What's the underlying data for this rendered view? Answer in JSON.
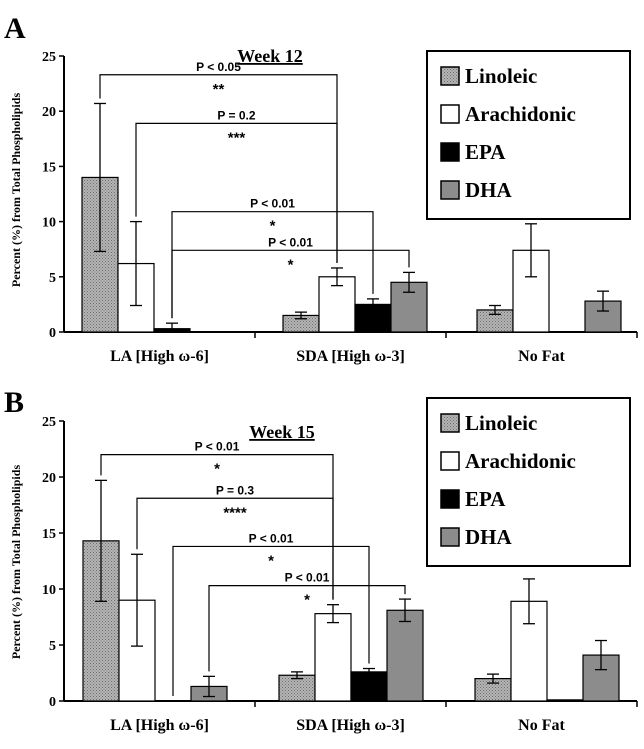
{
  "colors": {
    "linoleic": "#a8a8a8",
    "arachidonic": "#ffffff",
    "epa": "#000000",
    "dha": "#8c8c8c"
  },
  "chart_data": [
    {
      "type": "bar",
      "panel": "A",
      "title": "Week 12",
      "ylabel": "Percent (%) from Total Phospholipids",
      "ylim": [
        0,
        25
      ],
      "yticks": [
        0,
        5,
        10,
        15,
        20,
        25
      ],
      "categories": [
        "LA [High ω-6]",
        "SDA [High ω-3]",
        "No Fat"
      ],
      "legend_position": "top-right",
      "series": [
        {
          "name": "Linoleic",
          "key": "linoleic",
          "values": [
            14.0,
            1.5,
            2.0
          ],
          "errors": [
            6.7,
            0.3,
            0.4
          ]
        },
        {
          "name": "Arachidonic",
          "key": "arachidonic",
          "values": [
            6.2,
            5.0,
            7.4
          ],
          "errors": [
            3.8,
            0.8,
            2.4
          ]
        },
        {
          "name": "EPA",
          "key": "epa",
          "values": [
            0.3,
            2.5,
            null
          ],
          "errors": [
            0.5,
            0.5,
            null
          ]
        },
        {
          "name": "DHA",
          "key": "dha",
          "values": [
            null,
            4.5,
            2.8
          ],
          "errors": [
            null,
            0.9,
            0.9
          ]
        }
      ],
      "comparisons": [
        {
          "from": [
            0,
            0
          ],
          "to": [
            1,
            1
          ],
          "label": "P < 0.05",
          "stars": "**",
          "y": 23.3
        },
        {
          "from": [
            0,
            1
          ],
          "to": [
            1,
            1
          ],
          "label": "P = 0.2",
          "stars": "***",
          "y": 18.9
        },
        {
          "from": [
            0,
            2
          ],
          "to": [
            1,
            2
          ],
          "label": "P < 0.01",
          "stars": "*",
          "y": 10.9
        },
        {
          "from": [
            0,
            2
          ],
          "to": [
            1,
            3
          ],
          "label": "P < 0.01",
          "stars": "*",
          "y": 7.4
        }
      ]
    },
    {
      "type": "bar",
      "panel": "B",
      "title": "Week 15",
      "ylabel": "Percent (%) from Total Phospholipids",
      "ylim": [
        0,
        25
      ],
      "yticks": [
        0,
        5,
        10,
        15,
        20,
        25
      ],
      "categories": [
        "LA [High ω-6]",
        "SDA [High ω-3]",
        "No Fat"
      ],
      "legend_position": "top-right",
      "series": [
        {
          "name": "Linoleic",
          "key": "linoleic",
          "values": [
            14.3,
            2.3,
            2.0
          ],
          "errors": [
            5.4,
            0.3,
            0.4
          ]
        },
        {
          "name": "Arachidonic",
          "key": "arachidonic",
          "values": [
            9.0,
            7.8,
            8.9
          ],
          "errors": [
            4.1,
            0.8,
            2.0
          ]
        },
        {
          "name": "EPA",
          "key": "epa",
          "values": [
            null,
            2.6,
            0.1
          ],
          "errors": [
            null,
            0.3,
            null
          ]
        },
        {
          "name": "DHA",
          "key": "dha",
          "values": [
            1.3,
            8.1,
            4.1
          ],
          "errors": [
            0.9,
            1.0,
            1.3
          ]
        }
      ],
      "comparisons": [
        {
          "from": [
            0,
            0
          ],
          "to": [
            1,
            1
          ],
          "label": "P < 0.01",
          "stars": "*",
          "y": 22.0
        },
        {
          "from": [
            0,
            1
          ],
          "to": [
            1,
            1
          ],
          "label": "P = 0.3",
          "stars": "****",
          "y": 18.1
        },
        {
          "from": [
            0,
            2
          ],
          "to": [
            1,
            2
          ],
          "label": "P < 0.01",
          "stars": "*",
          "y": 13.8
        },
        {
          "from": [
            0,
            3
          ],
          "to": [
            1,
            3
          ],
          "label": "P < 0.01",
          "stars": "*",
          "y": 10.3
        }
      ]
    }
  ]
}
